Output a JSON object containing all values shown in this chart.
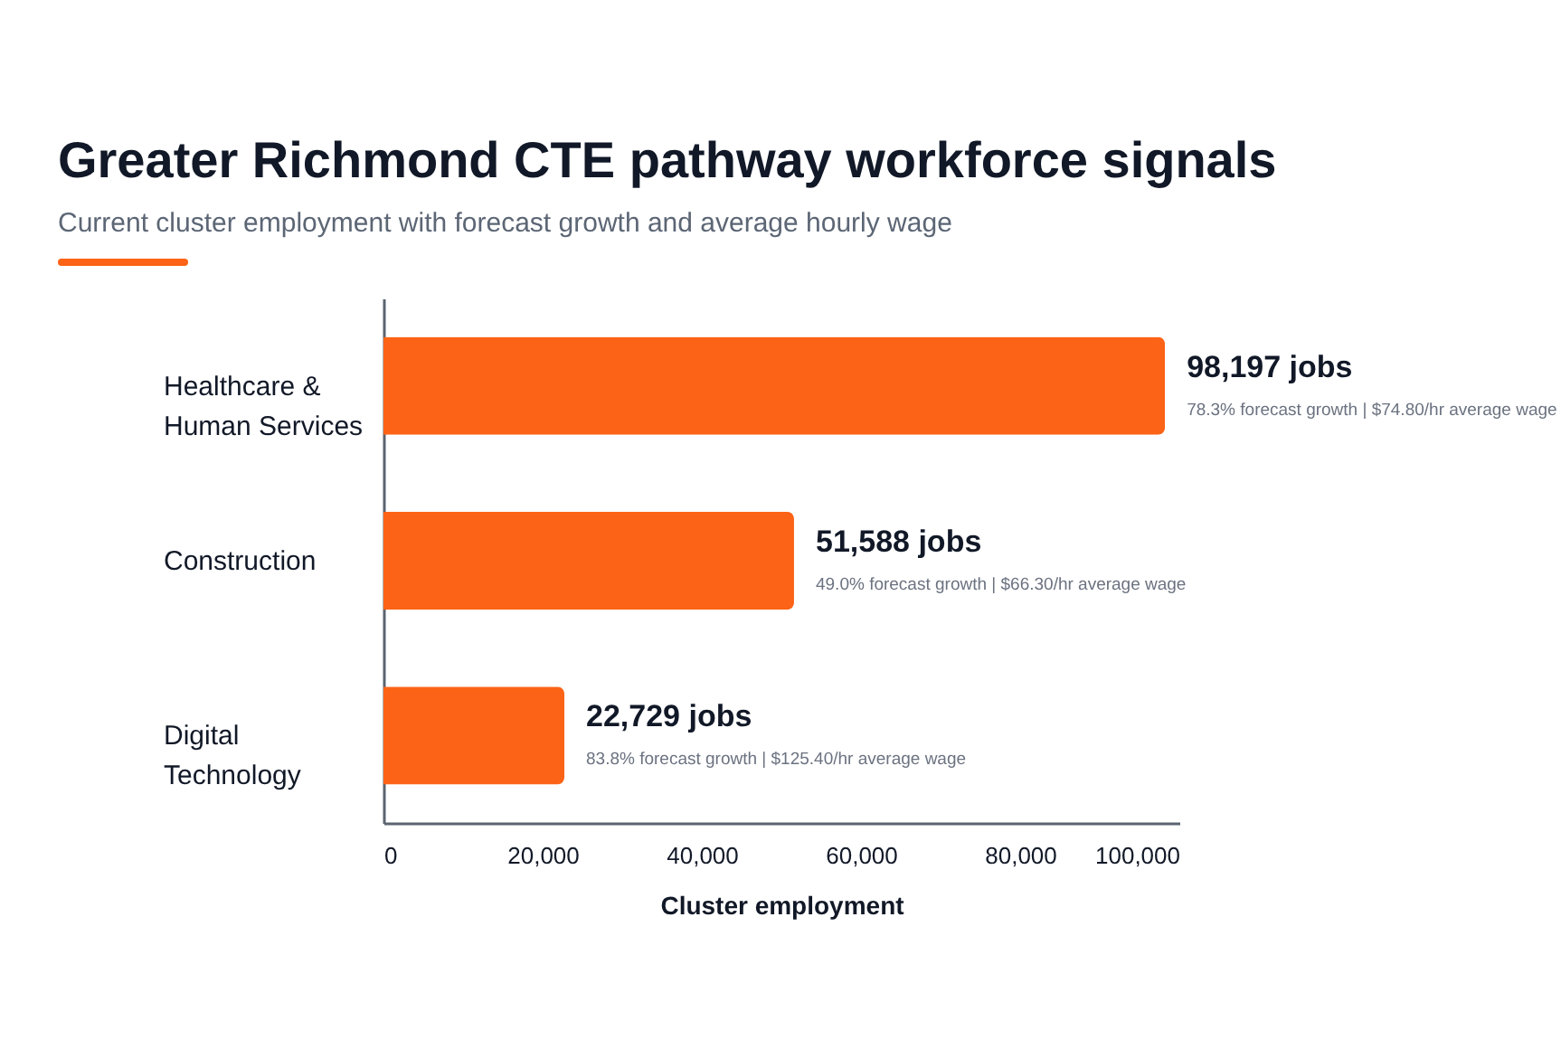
{
  "chart_data": {
    "type": "bar",
    "orientation": "horizontal",
    "title": "Greater Richmond CTE pathway workforce signals",
    "subtitle": "Current cluster employment with forecast growth and average hourly wage",
    "xlabel": "Cluster employment",
    "categories": [
      "Healthcare & Human Services",
      "Construction",
      "Digital Technology"
    ],
    "values": [
      98197,
      51588,
      22729
    ],
    "color": "#fc6316",
    "xlim": [
      0,
      100000
    ],
    "xticks": [
      0,
      {
        "value": 20000,
        "label": "20,000"
      },
      {
        "value": 40000,
        "label": "40,000"
      },
      {
        "value": 60000,
        "label": "60,000"
      },
      {
        "value": 80000,
        "label": "80,000"
      },
      {
        "value": 100000,
        "label": "100,000"
      }
    ],
    "value_labels": [
      "98,197 jobs",
      "51,588 jobs",
      "22,729 jobs"
    ],
    "annotations": [
      {
        "text": "78.3% forecast growth | $74.80/hr average wage",
        "x": 98197,
        "y": "Healthcare & Human Services"
      },
      {
        "text": "49.0% forecast growth | $66.30/hr average wage",
        "x": 51588,
        "y": "Construction"
      },
      {
        "text": "83.8% forecast growth | $125.40/hr average wage",
        "x": 22729,
        "y": "Digital Technology"
      }
    ],
    "grid": false
  }
}
